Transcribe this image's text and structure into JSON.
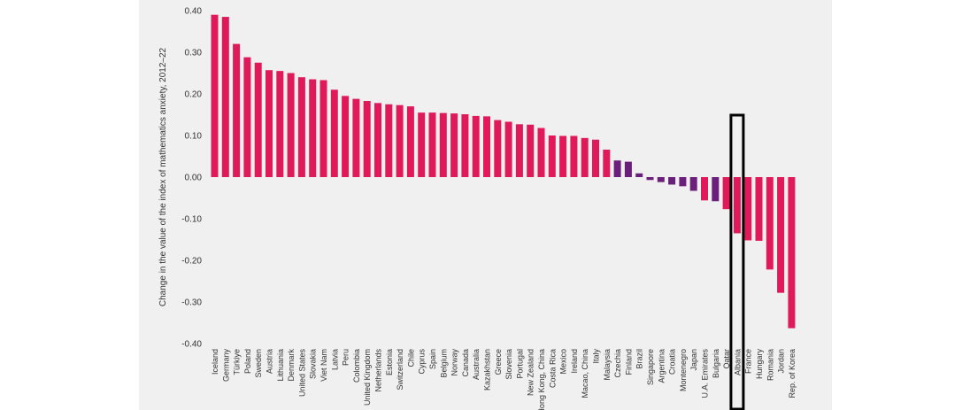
{
  "colors": {
    "significant": "#e0195a",
    "not_significant": "#6a1f7a",
    "highlight_box": "#000000",
    "background_panel": "#f1f0f0"
  },
  "chart_data": {
    "type": "bar",
    "ylabel": "Change in the value of the index of mathematics anxiety, 2012–22",
    "xlabel": "",
    "ylim": [
      -0.4,
      0.4
    ],
    "yticks": [
      "0.40",
      "0.30",
      "0.20",
      "0.10",
      "0.00",
      "-0.10",
      "-0.20",
      "-0.30",
      "-0.40"
    ],
    "grid": false,
    "highlighted_category": "Albania",
    "categories": [
      "Iceland",
      "Germany",
      "Türkiye",
      "Poland",
      "Sweden",
      "Austria",
      "Lithuania",
      "Denmark",
      "United States",
      "Slovakia",
      "Viet Nam",
      "Latvia",
      "Peru",
      "Colombia",
      "United Kingdom",
      "Netherlands",
      "Estonia",
      "Switzerland",
      "Chile",
      "Cyprus",
      "Spain",
      "Belgium",
      "Norway",
      "Canada",
      "Australia",
      "Kazakhstan",
      "Greece",
      "Slovenia",
      "Portugal",
      "New Zealand",
      "Hong Kong, China",
      "Costa Rica",
      "Mexico",
      "Ireland",
      "Macao, China",
      "Italy",
      "Malaysia",
      "Czechia",
      "Finland",
      "Brazil",
      "Singapore",
      "Argentina",
      "Croatia",
      "Montenegro",
      "Japan",
      "U.A. Emirates",
      "Bulgaria",
      "Qatar",
      "Albania",
      "France",
      "Hungary",
      "Romania",
      "Jordan",
      "Rep. of Korea"
    ],
    "values": [
      0.39,
      0.385,
      0.32,
      0.288,
      0.275,
      0.257,
      0.255,
      0.25,
      0.24,
      0.235,
      0.233,
      0.21,
      0.195,
      0.188,
      0.183,
      0.178,
      0.175,
      0.173,
      0.17,
      0.155,
      0.155,
      0.154,
      0.153,
      0.151,
      0.147,
      0.146,
      0.137,
      0.133,
      0.127,
      0.126,
      0.118,
      0.1,
      0.099,
      0.099,
      0.094,
      0.09,
      0.066,
      0.04,
      0.037,
      0.009,
      -0.007,
      -0.012,
      -0.018,
      -0.022,
      -0.033,
      -0.056,
      -0.058,
      -0.077,
      -0.135,
      -0.152,
      -0.153,
      -0.222,
      -0.278,
      -0.363
    ],
    "significant": [
      true,
      true,
      true,
      true,
      true,
      true,
      true,
      true,
      true,
      true,
      true,
      true,
      true,
      true,
      true,
      true,
      true,
      true,
      true,
      true,
      true,
      true,
      true,
      true,
      true,
      true,
      true,
      true,
      true,
      true,
      true,
      true,
      true,
      true,
      true,
      true,
      true,
      false,
      false,
      false,
      false,
      false,
      false,
      false,
      false,
      true,
      false,
      true,
      true,
      true,
      true,
      true,
      true,
      true
    ]
  }
}
